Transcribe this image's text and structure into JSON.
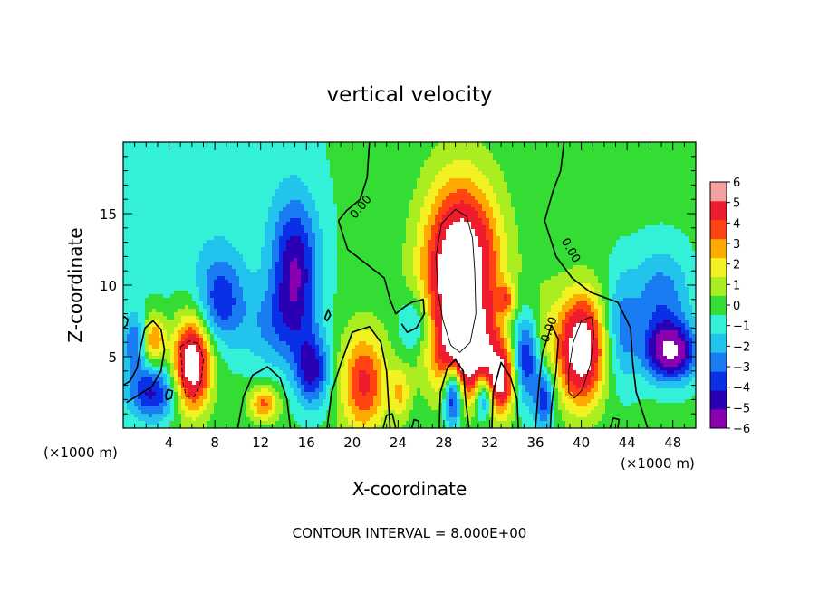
{
  "chart_data": {
    "type": "heatmap",
    "title": "vertical velocity",
    "xlabel": "X-coordinate",
    "ylabel": "Z-coordinate",
    "x_unit_label": "(×1000 m)",
    "x_unit_label_right": "(×1000 m)",
    "footer": "CONTOUR INTERVAL = 8.000E+00",
    "xlim": [
      0,
      50
    ],
    "ylim": [
      0,
      20
    ],
    "x_ticks": [
      4,
      8,
      12,
      16,
      20,
      24,
      28,
      32,
      36,
      40,
      44,
      48
    ],
    "x_tick_labels": [
      "4",
      "8",
      "12",
      "16",
      "20",
      "24",
      "28",
      "32",
      "36",
      "40",
      "44",
      "48"
    ],
    "y_ticks": [
      5,
      10,
      15
    ],
    "y_tick_labels": [
      "5",
      "10",
      "15"
    ],
    "colorbar": {
      "min": -6,
      "max": 6,
      "ticks": [
        6,
        5,
        4,
        3,
        2,
        1,
        0,
        -1,
        -2,
        -3,
        -4,
        -5,
        -6
      ],
      "tick_labels": [
        "6",
        "5",
        "4",
        "3",
        "2",
        "1",
        "0",
        "−1",
        "−2",
        "−3",
        "−4",
        "−5",
        "−6"
      ]
    },
    "background_value": 0.3,
    "features": [
      {
        "x": 29.5,
        "z": 11.0,
        "rx": 3.2,
        "rz": 6.0,
        "value": 9
      },
      {
        "x": 30.0,
        "z": 5.0,
        "rx": 2.6,
        "rz": 3.0,
        "value": 6
      },
      {
        "x": 6.0,
        "z": 4.5,
        "rx": 1.6,
        "rz": 3.2,
        "value": 8
      },
      {
        "x": 2.7,
        "z": 6.2,
        "rx": 1.0,
        "rz": 1.8,
        "value": 4
      },
      {
        "x": 40.0,
        "z": 5.5,
        "rx": 2.0,
        "rz": 3.8,
        "value": 8
      },
      {
        "x": 33.0,
        "z": 3.3,
        "rx": 1.2,
        "rz": 2.4,
        "value": 6
      },
      {
        "x": 21.0,
        "z": 3.2,
        "rx": 2.0,
        "rz": 3.6,
        "value": 5
      },
      {
        "x": 12.3,
        "z": 1.7,
        "rx": 1.3,
        "rz": 1.2,
        "value": 4
      },
      {
        "x": 24.2,
        "z": 2.4,
        "rx": 0.9,
        "rz": 1.8,
        "value": 2.5
      },
      {
        "x": 33.5,
        "z": 9.0,
        "rx": 0.7,
        "rz": 1.0,
        "value": 3
      },
      {
        "x": 36.5,
        "z": 6.5,
        "rx": 1.8,
        "rz": 4.0,
        "value": 1.5
      },
      {
        "x": 15.0,
        "z": 11.0,
        "rx": 2.0,
        "rz": 5.0,
        "value": -5
      },
      {
        "x": 16.5,
        "z": 4.0,
        "rx": 1.5,
        "rz": 2.5,
        "value": -4.5
      },
      {
        "x": 8.5,
        "z": 9.0,
        "rx": 2.0,
        "rz": 3.0,
        "value": -3.5
      },
      {
        "x": 2.5,
        "z": 2.5,
        "rx": 2.2,
        "rz": 2.0,
        "value": -4.5
      },
      {
        "x": 1.0,
        "z": 6.0,
        "rx": 1.0,
        "rz": 2.0,
        "value": -3
      },
      {
        "x": 28.8,
        "z": 2.5,
        "rx": 0.8,
        "rz": 2.2,
        "value": -6.5
      },
      {
        "x": 31.5,
        "z": 2.2,
        "rx": 0.8,
        "rz": 1.6,
        "value": -4.5
      },
      {
        "x": 35.2,
        "z": 5.0,
        "rx": 1.2,
        "rz": 3.2,
        "value": -5
      },
      {
        "x": 36.8,
        "z": 2.0,
        "rx": 0.9,
        "rz": 2.2,
        "value": -4
      },
      {
        "x": 47.8,
        "z": 5.3,
        "rx": 2.2,
        "rz": 2.0,
        "value": -6.5
      },
      {
        "x": 47.0,
        "z": 9.0,
        "rx": 2.5,
        "rz": 3.5,
        "value": -3
      },
      {
        "x": 25.5,
        "z": 7.3,
        "rx": 1.4,
        "rz": 2.0,
        "value": -2.5
      },
      {
        "x": 13.0,
        "z": 7.0,
        "rx": 3.0,
        "rz": 3.0,
        "value": -2
      },
      {
        "x": 43.5,
        "z": 7.0,
        "rx": 1.5,
        "rz": 4.0,
        "value": -2.5
      }
    ],
    "contour_labels": [
      {
        "text": "0.00",
        "x": 21.0,
        "z": 15.3,
        "angle": -50
      },
      {
        "text": "0.00",
        "x": 38.8,
        "z": 12.3,
        "angle": 60
      },
      {
        "text": "0.00",
        "x": 37.5,
        "z": 6.8,
        "angle": -70
      }
    ],
    "contour_lines": [
      {
        "style": "solid",
        "width": 1.6,
        "points": [
          [
            21.5,
            20
          ],
          [
            21.3,
            17.5
          ],
          [
            20.7,
            16.0
          ],
          [
            19.5,
            15.2
          ],
          [
            18.8,
            14.5
          ],
          [
            19.6,
            12.5
          ],
          [
            21.2,
            11.5
          ],
          [
            22.8,
            10.5
          ],
          [
            23.3,
            9.0
          ],
          [
            23.8,
            8.0
          ],
          [
            24.6,
            8.5
          ],
          [
            25.2,
            8.8
          ],
          [
            26.2,
            9.0
          ],
          [
            26.3,
            8.0
          ],
          [
            25.6,
            7.0
          ],
          [
            24.8,
            6.7
          ],
          [
            24.3,
            7.3
          ]
        ]
      },
      {
        "style": "solid",
        "width": 1.6,
        "points": [
          [
            38.5,
            20
          ],
          [
            38.2,
            18.0
          ],
          [
            37.5,
            16.5
          ],
          [
            36.8,
            14.5
          ],
          [
            37.8,
            12.0
          ],
          [
            39.2,
            10.5
          ],
          [
            40.8,
            9.5
          ],
          [
            43.2,
            8.8
          ],
          [
            44.3,
            7.0
          ],
          [
            44.5,
            4.5
          ],
          [
            44.8,
            2.5
          ],
          [
            45.8,
            0
          ]
        ]
      },
      {
        "style": "solid",
        "width": 1.6,
        "points": [
          [
            0.3,
            1.8
          ],
          [
            1.5,
            2.4
          ],
          [
            2.5,
            2.9
          ],
          [
            3.3,
            4.0
          ],
          [
            3.6,
            5.5
          ],
          [
            3.3,
            6.9
          ],
          [
            2.6,
            7.5
          ],
          [
            1.9,
            7.0
          ],
          [
            1.5,
            5.6
          ],
          [
            1.2,
            4.2
          ],
          [
            0.6,
            3.3
          ],
          [
            0,
            3.0
          ]
        ]
      },
      {
        "style": "solid",
        "width": 1.6,
        "points": [
          [
            10.0,
            0
          ],
          [
            10.5,
            2.2
          ],
          [
            11.3,
            3.7
          ],
          [
            12.6,
            4.3
          ],
          [
            13.7,
            3.5
          ],
          [
            14.3,
            2.0
          ],
          [
            14.6,
            0
          ]
        ]
      },
      {
        "style": "solid",
        "width": 1.6,
        "points": [
          [
            17.8,
            0
          ],
          [
            18.2,
            2.5
          ],
          [
            19.0,
            4.5
          ],
          [
            20.0,
            6.7
          ],
          [
            21.5,
            7.1
          ],
          [
            22.5,
            6.0
          ],
          [
            23.0,
            4.0
          ],
          [
            23.3,
            0
          ]
        ]
      },
      {
        "style": "solid",
        "width": 1.6,
        "points": [
          [
            27.6,
            0
          ],
          [
            27.7,
            2.5
          ],
          [
            28.3,
            4.2
          ],
          [
            29.0,
            4.8
          ],
          [
            29.7,
            4.0
          ],
          [
            29.9,
            2.0
          ],
          [
            30.2,
            0
          ]
        ]
      },
      {
        "style": "solid",
        "width": 1.6,
        "points": [
          [
            32.2,
            0
          ],
          [
            32.3,
            2.5
          ],
          [
            33.0,
            4.6
          ],
          [
            33.8,
            3.6
          ],
          [
            34.4,
            2.0
          ],
          [
            34.5,
            0
          ]
        ]
      },
      {
        "style": "solid",
        "width": 1.6,
        "points": [
          [
            36.0,
            0
          ],
          [
            36.3,
            3.0
          ],
          [
            36.6,
            5.2
          ],
          [
            37.4,
            7.2
          ],
          [
            38.0,
            6.2
          ],
          [
            37.8,
            4.0
          ],
          [
            37.4,
            1.5
          ],
          [
            37.3,
            0
          ]
        ]
      },
      {
        "style": "solid",
        "width": 1.6,
        "points": [
          [
            3.7,
            2.3
          ],
          [
            3.9,
            2.7
          ],
          [
            4.3,
            2.6
          ],
          [
            4.2,
            2.1
          ],
          [
            3.8,
            2.0
          ],
          [
            3.7,
            2.3
          ]
        ]
      },
      {
        "style": "solid",
        "width": 1.6,
        "points": [
          [
            0,
            7.0
          ],
          [
            0.3,
            7.2
          ],
          [
            0.4,
            7.6
          ],
          [
            0.1,
            7.8
          ],
          [
            0,
            7.7
          ]
        ]
      },
      {
        "style": "solid",
        "width": 1.6,
        "points": [
          [
            17.6,
            7.7
          ],
          [
            17.9,
            8.3
          ],
          [
            18.1,
            7.9
          ],
          [
            17.8,
            7.5
          ],
          [
            17.6,
            7.7
          ]
        ]
      },
      {
        "style": "solid",
        "width": 1.6,
        "points": [
          [
            42.5,
            0
          ],
          [
            42.8,
            0.7
          ],
          [
            43.3,
            0.6
          ],
          [
            43.2,
            0
          ]
        ]
      },
      {
        "style": "solid",
        "width": 1.6,
        "points": [
          [
            22.7,
            0
          ],
          [
            23.0,
            0.9
          ],
          [
            23.5,
            1.0
          ],
          [
            23.8,
            0
          ]
        ]
      },
      {
        "style": "solid",
        "width": 1.6,
        "points": [
          [
            25.2,
            0
          ],
          [
            25.4,
            0.6
          ],
          [
            25.8,
            0.5
          ],
          [
            25.8,
            0
          ]
        ]
      },
      {
        "style": "solid",
        "width": 0.9,
        "points": [
          [
            27.5,
            9.5
          ],
          [
            27.3,
            12.0
          ],
          [
            27.8,
            14.3
          ],
          [
            29.0,
            15.3
          ],
          [
            30.0,
            14.8
          ],
          [
            30.5,
            13.3
          ],
          [
            30.7,
            11.0
          ],
          [
            30.8,
            8.0
          ],
          [
            30.3,
            6.0
          ],
          [
            29.4,
            5.3
          ],
          [
            28.6,
            5.8
          ],
          [
            27.9,
            7.6
          ],
          [
            27.5,
            9.5
          ]
        ]
      },
      {
        "style": "solid",
        "width": 0.9,
        "points": [
          [
            38.9,
            4.0
          ],
          [
            39.3,
            6.0
          ],
          [
            40.0,
            7.5
          ],
          [
            40.9,
            7.8
          ],
          [
            41.1,
            6.5
          ],
          [
            40.8,
            4.5
          ],
          [
            40.1,
            2.7
          ],
          [
            39.4,
            2.1
          ],
          [
            38.9,
            2.5
          ],
          [
            38.9,
            4.0
          ]
        ]
      },
      {
        "style": "dashed",
        "width": 0.9,
        "points": [
          [
            5.0,
            5.7
          ],
          [
            5.8,
            6.1
          ],
          [
            6.6,
            5.9
          ],
          [
            7.0,
            4.8
          ],
          [
            6.8,
            3.3
          ],
          [
            6.2,
            2.2
          ],
          [
            5.5,
            2.2
          ],
          [
            5.2,
            3.3
          ],
          [
            5.1,
            4.5
          ],
          [
            5.0,
            5.7
          ]
        ]
      }
    ]
  }
}
